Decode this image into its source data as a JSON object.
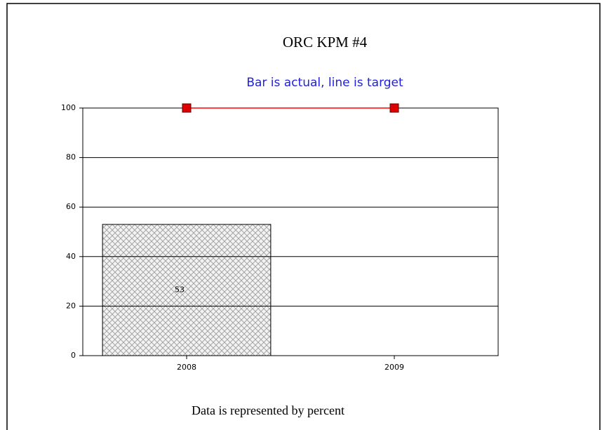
{
  "chart_data": {
    "type": "bar",
    "title": "ORC KPM #4",
    "subtitle": "Bar is actual, line is target",
    "footer": "Data is represented by percent",
    "categories": [
      "2008",
      "2009"
    ],
    "series": [
      {
        "type": "bar",
        "color": "#999999",
        "values": [
          53,
          null
        ]
      },
      {
        "type": "line",
        "color": "#ff0000",
        "marker_color": "#dd0000",
        "values": [
          100,
          100
        ]
      }
    ],
    "ylim": [
      0,
      100
    ],
    "yticks": [
      0,
      20,
      40,
      60,
      80,
      100
    ],
    "grid": true
  }
}
